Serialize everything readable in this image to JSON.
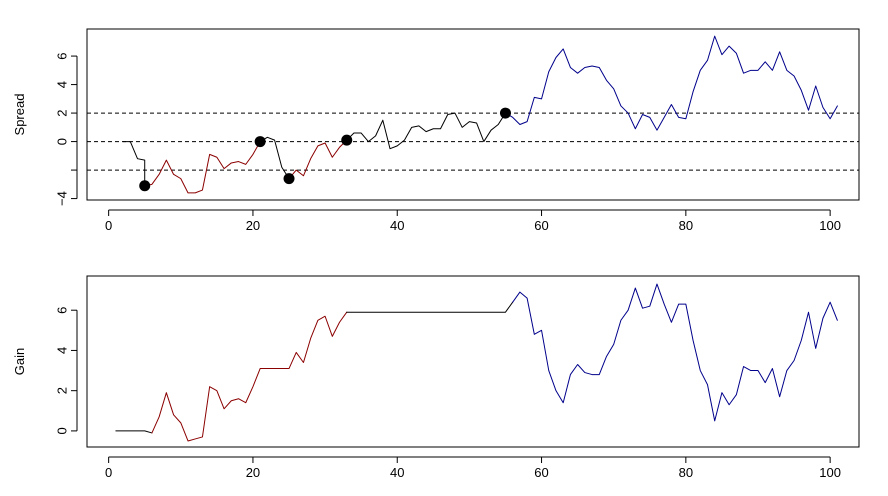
{
  "chart_data": [
    {
      "type": "line",
      "title": "",
      "xlabel": "",
      "ylabel": "Spread",
      "xlim": [
        -3,
        104
      ],
      "ylim": [
        -4.1,
        7.9
      ],
      "x_ticks": [
        0,
        20,
        40,
        60,
        80,
        100
      ],
      "y_ticks": [
        -4,
        -2,
        0,
        2,
        4,
        6
      ],
      "y_tick_labels": [
        "−4",
        "",
        "0",
        "2",
        "4",
        "6"
      ],
      "hlines": [
        -2,
        0,
        2
      ],
      "grid": false,
      "series": [
        {
          "color": "#000000",
          "points": [
            [
              2,
              0.0
            ],
            [
              3,
              0.0
            ],
            [
              4,
              -1.2
            ],
            [
              5,
              -1.3
            ],
            [
              5,
              -3.1
            ]
          ]
        },
        {
          "color": "#8B0000",
          "points": [
            [
              5,
              -3.1
            ],
            [
              6,
              -3.0
            ],
            [
              7,
              -2.3
            ],
            [
              8,
              -1.3
            ],
            [
              9,
              -2.3
            ],
            [
              10,
              -2.6
            ],
            [
              11,
              -3.6
            ],
            [
              12,
              -3.6
            ],
            [
              13,
              -3.4
            ],
            [
              14,
              -0.9
            ],
            [
              15,
              -1.1
            ],
            [
              16,
              -1.9
            ],
            [
              17,
              -1.5
            ],
            [
              18,
              -1.4
            ],
            [
              19,
              -1.6
            ],
            [
              20,
              -0.9
            ],
            [
              21,
              0.0
            ]
          ]
        },
        {
          "color": "#000000",
          "points": [
            [
              21,
              0.0
            ],
            [
              22,
              0.3
            ],
            [
              23,
              0.1
            ],
            [
              24,
              -1.8
            ],
            [
              25,
              -2.6
            ]
          ]
        },
        {
          "color": "#8B0000",
          "points": [
            [
              25,
              -2.6
            ],
            [
              26,
              -2.0
            ],
            [
              27,
              -2.4
            ],
            [
              28,
              -1.2
            ],
            [
              29,
              -0.3
            ],
            [
              30,
              -0.1
            ],
            [
              31,
              -1.1
            ],
            [
              32,
              -0.4
            ],
            [
              33,
              0.1
            ]
          ]
        },
        {
          "color": "#000000",
          "points": [
            [
              33,
              0.1
            ],
            [
              34,
              0.6
            ],
            [
              35,
              0.6
            ],
            [
              36,
              0.0
            ],
            [
              37,
              0.4
            ],
            [
              38,
              1.5
            ],
            [
              39,
              -0.5
            ],
            [
              40,
              -0.3
            ],
            [
              41,
              0.1
            ],
            [
              42,
              1.0
            ],
            [
              43,
              1.1
            ],
            [
              44,
              0.7
            ],
            [
              45,
              0.9
            ],
            [
              46,
              0.9
            ],
            [
              47,
              1.9
            ],
            [
              48,
              2.0
            ],
            [
              49,
              1.0
            ],
            [
              50,
              1.4
            ],
            [
              51,
              1.3
            ],
            [
              52,
              0.0
            ],
            [
              53,
              0.8
            ],
            [
              54,
              1.2
            ],
            [
              55,
              2.0
            ]
          ]
        },
        {
          "color": "#00008B",
          "points": [
            [
              55,
              2.0
            ],
            [
              56,
              1.7
            ],
            [
              57,
              1.2
            ],
            [
              58,
              1.4
            ],
            [
              59,
              3.1
            ],
            [
              60,
              3.0
            ],
            [
              61,
              4.9
            ],
            [
              62,
              5.9
            ],
            [
              63,
              6.5
            ],
            [
              64,
              5.2
            ],
            [
              65,
              4.8
            ],
            [
              66,
              5.2
            ],
            [
              67,
              5.3
            ],
            [
              68,
              5.2
            ],
            [
              69,
              4.3
            ],
            [
              70,
              3.7
            ],
            [
              71,
              2.5
            ],
            [
              72,
              2.0
            ],
            [
              73,
              0.9
            ],
            [
              74,
              1.9
            ],
            [
              75,
              1.7
            ],
            [
              76,
              0.8
            ],
            [
              77,
              1.7
            ],
            [
              78,
              2.6
            ],
            [
              79,
              1.7
            ],
            [
              80,
              1.6
            ],
            [
              81,
              3.5
            ],
            [
              82,
              5.0
            ],
            [
              83,
              5.7
            ],
            [
              84,
              7.4
            ],
            [
              85,
              6.1
            ],
            [
              86,
              6.7
            ],
            [
              87,
              6.2
            ],
            [
              88,
              4.8
            ],
            [
              89,
              5.0
            ],
            [
              90,
              5.0
            ],
            [
              91,
              5.6
            ],
            [
              92,
              5.0
            ],
            [
              93,
              6.3
            ],
            [
              94,
              5.0
            ],
            [
              95,
              4.6
            ],
            [
              96,
              3.6
            ],
            [
              97,
              2.2
            ],
            [
              98,
              3.9
            ],
            [
              99,
              2.4
            ],
            [
              100,
              1.6
            ],
            [
              101,
              2.5
            ]
          ]
        }
      ],
      "points": [
        [
          5,
          -3.1
        ],
        [
          21,
          0.0
        ],
        [
          25,
          -2.6
        ],
        [
          33,
          0.1
        ],
        [
          55,
          2.0
        ]
      ]
    },
    {
      "type": "line",
      "title": "",
      "xlabel": "",
      "ylabel": "Gain",
      "xlim": [
        -3,
        104
      ],
      "ylim": [
        -0.8,
        7.7
      ],
      "x_ticks": [
        0,
        20,
        40,
        60,
        80,
        100
      ],
      "y_ticks": [
        0,
        2,
        4,
        6
      ],
      "y_tick_labels": [
        "0",
        "2",
        "4",
        "6"
      ],
      "hlines": [],
      "grid": false,
      "series": [
        {
          "color": "#000000",
          "points": [
            [
              1,
              0.0
            ],
            [
              2,
              0.0
            ],
            [
              3,
              0.0
            ],
            [
              4,
              0.0
            ],
            [
              5,
              0.0
            ],
            [
              6,
              -0.1
            ]
          ]
        },
        {
          "color": "#8B0000",
          "points": [
            [
              6,
              -0.1
            ],
            [
              7,
              0.7
            ],
            [
              8,
              1.9
            ],
            [
              9,
              0.8
            ],
            [
              10,
              0.4
            ],
            [
              11,
              -0.5
            ],
            [
              12,
              -0.4
            ],
            [
              13,
              -0.3
            ],
            [
              14,
              2.2
            ],
            [
              15,
              2.0
            ],
            [
              16,
              1.1
            ],
            [
              17,
              1.5
            ],
            [
              18,
              1.6
            ],
            [
              19,
              1.4
            ],
            [
              20,
              2.2
            ],
            [
              21,
              3.1
            ],
            [
              22,
              3.1
            ],
            [
              23,
              3.1
            ],
            [
              24,
              3.1
            ],
            [
              25,
              3.1
            ],
            [
              26,
              3.9
            ],
            [
              27,
              3.4
            ],
            [
              28,
              4.6
            ],
            [
              29,
              5.5
            ],
            [
              30,
              5.7
            ],
            [
              31,
              4.7
            ],
            [
              32,
              5.4
            ],
            [
              33,
              5.9
            ]
          ]
        },
        {
          "color": "#000000",
          "points": [
            [
              33,
              5.9
            ],
            [
              40,
              5.9
            ],
            [
              45,
              5.9
            ],
            [
              50,
              5.9
            ],
            [
              55,
              5.9
            ],
            [
              56,
              6.4
            ]
          ]
        },
        {
          "color": "#00008B",
          "points": [
            [
              56,
              6.4
            ],
            [
              57,
              6.9
            ],
            [
              58,
              6.6
            ],
            [
              59,
              4.8
            ],
            [
              60,
              5.0
            ],
            [
              61,
              3.0
            ],
            [
              62,
              2.0
            ],
            [
              63,
              1.4
            ],
            [
              64,
              2.8
            ],
            [
              65,
              3.3
            ],
            [
              66,
              2.9
            ],
            [
              67,
              2.8
            ],
            [
              68,
              2.8
            ],
            [
              69,
              3.7
            ],
            [
              70,
              4.3
            ],
            [
              71,
              5.5
            ],
            [
              72,
              6.0
            ],
            [
              73,
              7.1
            ],
            [
              74,
              6.1
            ],
            [
              75,
              6.2
            ],
            [
              76,
              7.3
            ],
            [
              77,
              6.3
            ],
            [
              78,
              5.4
            ],
            [
              79,
              6.3
            ],
            [
              80,
              6.3
            ],
            [
              81,
              4.5
            ],
            [
              82,
              3.0
            ],
            [
              83,
              2.3
            ],
            [
              84,
              0.5
            ],
            [
              85,
              1.9
            ],
            [
              86,
              1.3
            ],
            [
              87,
              1.8
            ],
            [
              88,
              3.2
            ],
            [
              89,
              3.0
            ],
            [
              90,
              3.0
            ],
            [
              91,
              2.4
            ],
            [
              92,
              3.1
            ],
            [
              93,
              1.7
            ],
            [
              94,
              3.0
            ],
            [
              95,
              3.5
            ],
            [
              96,
              4.5
            ],
            [
              97,
              5.9
            ],
            [
              98,
              4.1
            ],
            [
              99,
              5.6
            ],
            [
              100,
              6.4
            ],
            [
              101,
              5.5
            ]
          ]
        }
      ],
      "points": []
    }
  ]
}
